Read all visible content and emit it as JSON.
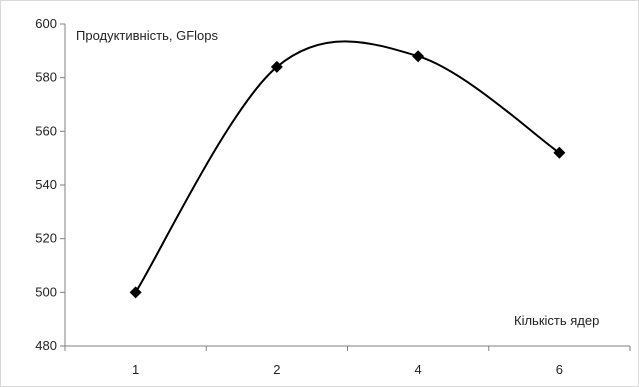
{
  "chart_data": {
    "type": "line",
    "title": "",
    "ylabel": "Продуктивність, GFlops",
    "xlabel": "Кількість ядер",
    "categories": [
      "1",
      "2",
      "4",
      "6"
    ],
    "series": [
      {
        "values": [
          500,
          584,
          588,
          552
        ]
      }
    ],
    "ylim": [
      480,
      600
    ],
    "yticks": [
      480,
      500,
      520,
      540,
      560,
      580,
      600
    ],
    "grid": false,
    "legend": "none",
    "line_color": "#000000",
    "marker": "diamond"
  }
}
